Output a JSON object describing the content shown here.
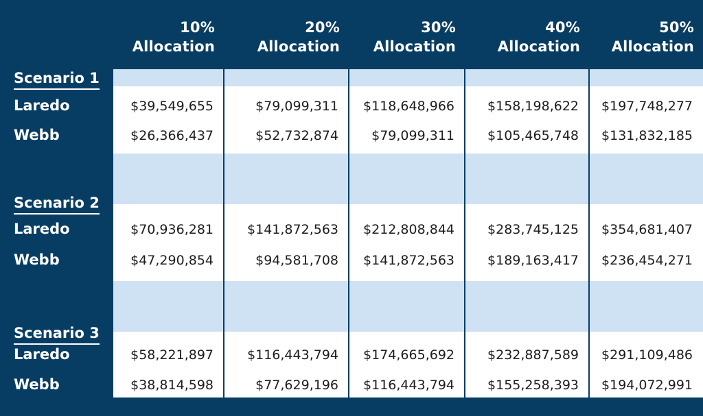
{
  "chart_data": {
    "type": "table",
    "columns": [
      "10%\nAllocation",
      "20%\nAllocation",
      "30%\nAllocation",
      "40%\nAllocation",
      "50%\nAllocation"
    ],
    "column_lines": [
      [
        "10%",
        "Allocation"
      ],
      [
        "20%",
        "Allocation"
      ],
      [
        "30%",
        "Allocation"
      ],
      [
        "40%",
        "Allocation"
      ],
      [
        "50%",
        "Allocation"
      ]
    ],
    "scenarios": [
      {
        "label": "Scenario 1",
        "rows": [
          {
            "label": "Laredo",
            "values": [
              "$39,549,655",
              "$79,099,311",
              "$118,648,966",
              "$158,198,622",
              "$197,748,277"
            ]
          },
          {
            "label": "Webb",
            "values": [
              "$26,366,437",
              "$52,732,874",
              "$79,099,311",
              "$105,465,748",
              "$131,832,185"
            ]
          }
        ]
      },
      {
        "label": "Scenario 2",
        "rows": [
          {
            "label": "Laredo",
            "values": [
              "$70,936,281",
              "$141,872,563",
              "$212,808,844",
              "$283,745,125",
              "$354,681,407"
            ]
          },
          {
            "label": "Webb",
            "values": [
              "$47,290,854",
              "$94,581,708",
              "$141,872,563",
              "$189,163,417",
              "$236,454,271"
            ]
          }
        ]
      },
      {
        "label": "Scenario 3",
        "rows": [
          {
            "label": "Laredo",
            "values": [
              "$58,221,897",
              "$116,443,794",
              "$174,665,692",
              "$232,887,589",
              "$291,109,486"
            ]
          },
          {
            "label": "Webb",
            "values": [
              "$38,814,598",
              "$77,629,196",
              "$116,443,794",
              "$155,258,393",
              "$194,072,991"
            ]
          }
        ]
      }
    ],
    "colors": {
      "background": "#083d63",
      "band": "#cfe2f3",
      "cell": "#ffffff",
      "text_light": "#ffffff",
      "text_dark": "#1d1d1d"
    }
  }
}
